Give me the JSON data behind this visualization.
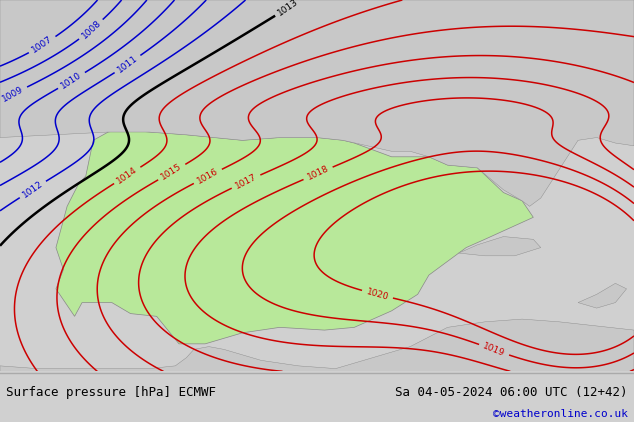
{
  "title_left": "Surface pressure [hPa] ECMWF",
  "title_right": "Sa 04-05-2024 06:00 UTC (12+42)",
  "credit": "©weatheronline.co.uk",
  "bg_color": "#d0d0d0",
  "land_green_color": "#b8e89a",
  "sea_color": "#c8c8c8",
  "blue_contour_color": "#0000cc",
  "red_contour_color": "#cc0000",
  "black_contour_color": "#000000",
  "credit_color": "#0000cc",
  "font_size_labels": 6.5,
  "font_size_bottom": 9,
  "font_size_credit": 8,
  "lon_min": -11,
  "lon_max": 6,
  "lat_min": 35,
  "lat_max": 48.5
}
